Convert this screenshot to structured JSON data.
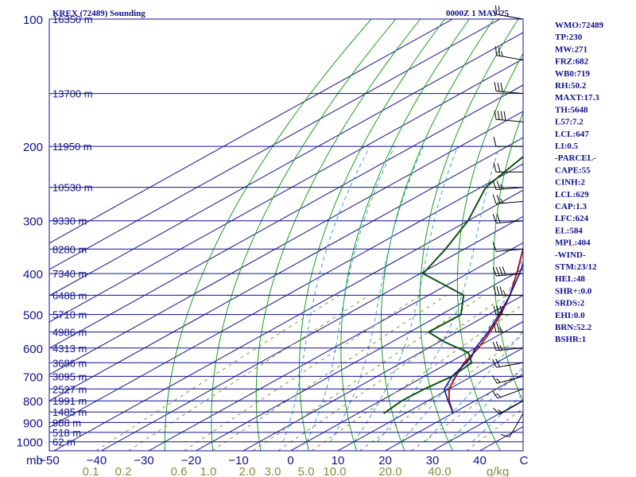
{
  "title_left": "KREX (72489) Sounding",
  "title_right": "0000Z  1 MAY 25",
  "indices": [
    "WMO:72489",
    "TP:230",
    "MW:271",
    "FRZ:682",
    "WB0:719",
    "RH:50.2",
    "MAXT:17.3",
    "TH:5648",
    "L57:7.2",
    "LCL:647",
    "LI:0.5",
    "-PARCEL-",
    "CAPE:55",
    "CINH:2",
    "LCL:629",
    "CAP:1.3",
    "LFC:624",
    "EL:584",
    "MPL:404",
    "-WIND-",
    "STM:23/12",
    "HEL:48",
    "SHR+:0.0",
    "SRDS:2",
    "EHI:0.0",
    "BRN:52.2",
    "BSHR:1"
  ],
  "colors": {
    "frame": "#10108c",
    "isobar": "#10108c",
    "isotherm": "#10108c",
    "dry_adiabat": "#18a018",
    "moist_adiabat": "#3aa0d0",
    "mixing_ratio": "#8c8c3c",
    "temperature": "#b01818",
    "dewpoint": "#105010",
    "parcel": "#1010a0",
    "barbs": "#000000"
  },
  "chart_data": {
    "type": "line",
    "diagram": "skew-T log-P",
    "pressure_ticks": [
      100,
      200,
      300,
      400,
      500,
      600,
      700,
      800,
      900,
      1000
    ],
    "pressure_unit_label": "mb",
    "temperature_ticks": [
      -50,
      -40,
      -30,
      -20,
      -10,
      0,
      10,
      20,
      30,
      40
    ],
    "temperature_unit_label": "C",
    "mixing_ratio_ticks": [
      "0.1",
      "0.2",
      "0.6",
      "1.0",
      "2.0",
      "3.0",
      "5.0",
      "10.0",
      "20.0",
      "40.0"
    ],
    "mixing_ratio_unit_label": "g/kg",
    "plim": [
      100,
      1050
    ],
    "height_labels": [
      {
        "p": 100,
        "label": "16350 m"
      },
      {
        "p": 150,
        "label": "13700 m"
      },
      {
        "p": 200,
        "label": "11950 m"
      },
      {
        "p": 250,
        "label": "10530 m"
      },
      {
        "p": 300,
        "label": "9330 m"
      },
      {
        "p": 350,
        "label": "8280 m"
      },
      {
        "p": 400,
        "label": "7340 m"
      },
      {
        "p": 450,
        "label": "6488 m"
      },
      {
        "p": 500,
        "label": "5710 m"
      },
      {
        "p": 550,
        "label": "4986 m"
      },
      {
        "p": 600,
        "label": "4313 m"
      },
      {
        "p": 650,
        "label": "3686 m"
      },
      {
        "p": 700,
        "label": "3095 m"
      },
      {
        "p": 750,
        "label": "2527 m"
      },
      {
        "p": 800,
        "label": "1991 m"
      },
      {
        "p": 850,
        "label": "1485 m"
      },
      {
        "p": 900,
        "label": "988 m"
      },
      {
        "p": 950,
        "label": "518 m"
      },
      {
        "p": 1000,
        "label": "62 m"
      }
    ],
    "series": [
      {
        "key": "temperature",
        "points": [
          [
            857,
            20.2
          ],
          [
            800,
            14.5
          ],
          [
            750,
            10.0
          ],
          [
            700,
            6.6
          ],
          [
            650,
            3.2
          ],
          [
            600,
            0.6
          ],
          [
            550,
            -3.0
          ],
          [
            500,
            -7.4
          ],
          [
            450,
            -12.8
          ],
          [
            400,
            -19.6
          ],
          [
            350,
            -27.6
          ],
          [
            300,
            -36.6
          ],
          [
            250,
            -48.2
          ],
          [
            230,
            -53.5
          ],
          [
            220,
            -54.5
          ],
          [
            200,
            -52.5
          ],
          [
            180,
            -53.8
          ],
          [
            150,
            -55.5
          ],
          [
            130,
            -60.0
          ],
          [
            115,
            -63.0
          ],
          [
            100,
            -66.5
          ]
        ]
      },
      {
        "key": "dewpoint",
        "points": [
          [
            857,
            5.5
          ],
          [
            800,
            4.5
          ],
          [
            750,
            4.8
          ],
          [
            700,
            5.8
          ],
          [
            650,
            4.8
          ],
          [
            615,
            0.2
          ],
          [
            580,
            -9.0
          ],
          [
            550,
            -16.0
          ],
          [
            500,
            -15.8
          ],
          [
            450,
            -22.6
          ],
          [
            400,
            -39.4
          ],
          [
            350,
            -44.0
          ],
          [
            300,
            -50.0
          ],
          [
            250,
            -59.0
          ],
          [
            200,
            -64.0
          ],
          [
            175,
            -70.0
          ],
          [
            150,
            -75.0
          ],
          [
            130,
            -79.0
          ],
          [
            115,
            -83.0
          ],
          [
            100,
            -86.0
          ]
        ]
      },
      {
        "key": "parcel",
        "points": [
          [
            857,
            20.2
          ],
          [
            800,
            14.3
          ],
          [
            750,
            9.0
          ],
          [
            700,
            5.8
          ],
          [
            650,
            3.6
          ],
          [
            629,
            2.5
          ],
          [
            600,
            0.0
          ],
          [
            550,
            -3.4
          ],
          [
            500,
            -7.8
          ],
          [
            450,
            -12.8
          ],
          [
            400,
            -19.0
          ],
          [
            350,
            -26.6
          ],
          [
            300,
            -35.6
          ],
          [
            250,
            -46.6
          ],
          [
            200,
            -60.4
          ],
          [
            175,
            -69.0
          ],
          [
            150,
            -79.0
          ],
          [
            130,
            -88.0
          ],
          [
            120,
            -93.0
          ]
        ]
      }
    ],
    "wind_barbs": [
      {
        "p": 857,
        "dir": 210,
        "spd": 10
      },
      {
        "p": 800,
        "dir": 240,
        "spd": 15
      },
      {
        "p": 750,
        "dir": 250,
        "spd": 15
      },
      {
        "p": 700,
        "dir": 255,
        "spd": 15
      },
      {
        "p": 650,
        "dir": 260,
        "spd": 20
      },
      {
        "p": 600,
        "dir": 265,
        "spd": 25
      },
      {
        "p": 550,
        "dir": 270,
        "spd": 25
      },
      {
        "p": 500,
        "dir": 270,
        "spd": 30
      },
      {
        "p": 450,
        "dir": 270,
        "spd": 35
      },
      {
        "p": 400,
        "dir": 265,
        "spd": 40
      },
      {
        "p": 350,
        "dir": 265,
        "spd": 50
      },
      {
        "p": 300,
        "dir": 265,
        "spd": 60
      },
      {
        "p": 270,
        "dir": 265,
        "spd": 65
      },
      {
        "p": 250,
        "dir": 265,
        "spd": 65
      },
      {
        "p": 230,
        "dir": 270,
        "spd": 60
      },
      {
        "p": 200,
        "dir": 270,
        "spd": 50
      },
      {
        "p": 175,
        "dir": 275,
        "spd": 40
      },
      {
        "p": 150,
        "dir": 275,
        "spd": 30
      },
      {
        "p": 125,
        "dir": 280,
        "spd": 25
      },
      {
        "p": 100,
        "dir": 280,
        "spd": 20
      }
    ]
  }
}
